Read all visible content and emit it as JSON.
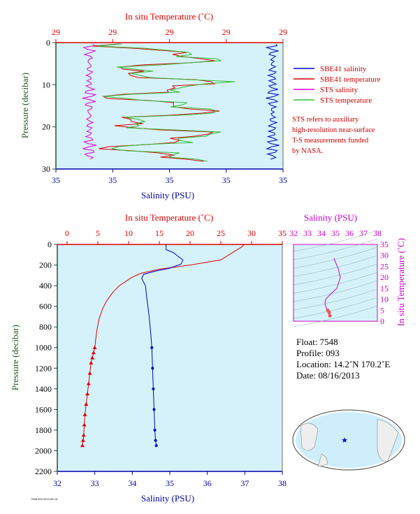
{
  "colors": {
    "plot_bg": "#d5f2fa",
    "sbe41_salinity": "#0000cc",
    "sbe41_temperature": "#dd0000",
    "sts_salinity": "#dd00dd",
    "sts_temperature": "#33bb33",
    "pressure_axis": "#225522",
    "temp_axis": "#dd0000",
    "sal_axis": "#0000aa",
    "ts_axis": "#cc00cc"
  },
  "top_panel": {
    "temp_title": "In situ Temperature (˚C)",
    "sal_title": "Salinity (PSU)",
    "pressure_title": "Pressure (decibar)",
    "temp_ticks": [
      "29",
      "29",
      "29",
      "29",
      "29"
    ],
    "sal_ticks": [
      "35",
      "35",
      "35",
      "35",
      "35"
    ],
    "pressure_ticks": [
      "0",
      "10",
      "20",
      "30"
    ]
  },
  "legend": {
    "items": [
      {
        "label": "SBE41 salinity",
        "color": "#0000cc"
      },
      {
        "label": "SBE41 temperature",
        "color": "#dd0000"
      },
      {
        "label": "STS salinity",
        "color": "#dd00dd"
      },
      {
        "label": "STS temperature",
        "color": "#33bb33"
      }
    ]
  },
  "note": {
    "line1": "STS refers to auxiliary",
    "line2": "high-resolution near-surface",
    "line3": "T-S measurements funded",
    "line4": "by NASA."
  },
  "main_panel": {
    "temp_title": "In situ Temperature (˚C)",
    "sal_title": "Salinity (PSU)",
    "pressure_title": "Pressure (decibar)",
    "temp_ticks": [
      "0",
      "5",
      "10",
      "15",
      "20",
      "25",
      "30",
      "35"
    ],
    "sal_ticks": [
      "32",
      "33",
      "34",
      "35",
      "36",
      "37",
      "38"
    ],
    "pressure_ticks": [
      "0",
      "200",
      "400",
      "600",
      "800",
      "1000",
      "1200",
      "1400",
      "1600",
      "1800",
      "2000",
      "2200"
    ]
  },
  "ts_panel": {
    "sal_title": "Salinity (PSU)",
    "temp_title": "In situ Temperature (˚C)",
    "sal_ticks": [
      "32",
      "33",
      "34",
      "35",
      "36",
      "37",
      "38"
    ],
    "temp_ticks": [
      "0",
      "5",
      "10",
      "15",
      "20",
      "25",
      "30",
      "35"
    ]
  },
  "float_info": {
    "float": "Float:  7548",
    "profile": "Profile:  093",
    "location": "Location:  14.2˚N  170.2˚E",
    "date": "Date:  08/16/2013"
  },
  "footer_stamp": "7548 093 2013-08-16",
  "chart_data": [
    {
      "type": "line",
      "panel": "main",
      "ylabel": "Pressure (decibar)",
      "ylim": [
        2200,
        0
      ],
      "series": [
        {
          "name": "SBE41 temperature",
          "axis": "temperature",
          "xlim": [
            0,
            35
          ],
          "x": [
            28.8,
            28.5,
            25,
            20,
            15,
            12,
            10.5,
            9.5,
            8.5,
            7.5,
            6.5,
            5.8,
            5.2,
            4.8,
            4.5,
            4.3,
            4.1,
            3.9,
            3.7,
            3.5,
            3.3,
            3.1,
            2.9,
            2.8,
            2.7,
            2.6,
            2.5
          ],
          "y": [
            0,
            20,
            150,
            200,
            240,
            280,
            320,
            360,
            400,
            460,
            540,
            620,
            720,
            850,
            1000,
            1050,
            1100,
            1150,
            1250,
            1350,
            1450,
            1550,
            1650,
            1750,
            1850,
            1900,
            1950
          ]
        },
        {
          "name": "SBE41 salinity",
          "axis": "salinity",
          "xlim": [
            32,
            38
          ],
          "x": [
            34.9,
            34.9,
            35.1,
            35.2,
            35.35,
            35.3,
            35.0,
            34.6,
            34.3,
            34.25,
            34.35,
            34.38,
            34.45,
            34.5,
            34.52,
            34.54,
            34.56,
            34.58,
            34.6,
            34.62,
            34.64
          ],
          "y": [
            0,
            50,
            80,
            110,
            150,
            190,
            230,
            260,
            290,
            330,
            400,
            500,
            700,
            900,
            1000,
            1200,
            1400,
            1600,
            1800,
            1900,
            1950
          ]
        }
      ]
    },
    {
      "type": "line",
      "panel": "top",
      "ylabel": "Pressure (decibar)",
      "ylim": [
        30,
        0
      ],
      "series": [
        {
          "name": "STS salinity",
          "note": "near-surface profile, narrow salinity range"
        },
        {
          "name": "STS temperature",
          "note": "near-surface profile, narrow temperature range"
        },
        {
          "name": "SBE41 temperature"
        },
        {
          "name": "SBE41 salinity"
        }
      ]
    },
    {
      "type": "scatter",
      "panel": "ts",
      "xlabel": "Salinity (PSU)",
      "ylabel": "In situ Temperature (˚C)",
      "xlim": [
        32,
        38
      ],
      "ylim": [
        0,
        35
      ],
      "x": [
        34.9,
        35.0,
        35.2,
        35.35,
        35.1,
        34.6,
        34.3,
        34.25,
        34.35,
        34.45,
        34.55,
        34.6
      ],
      "y": [
        28.8,
        27,
        24,
        20,
        15,
        12,
        10,
        8,
        6,
        5,
        4,
        2.5
      ]
    }
  ]
}
